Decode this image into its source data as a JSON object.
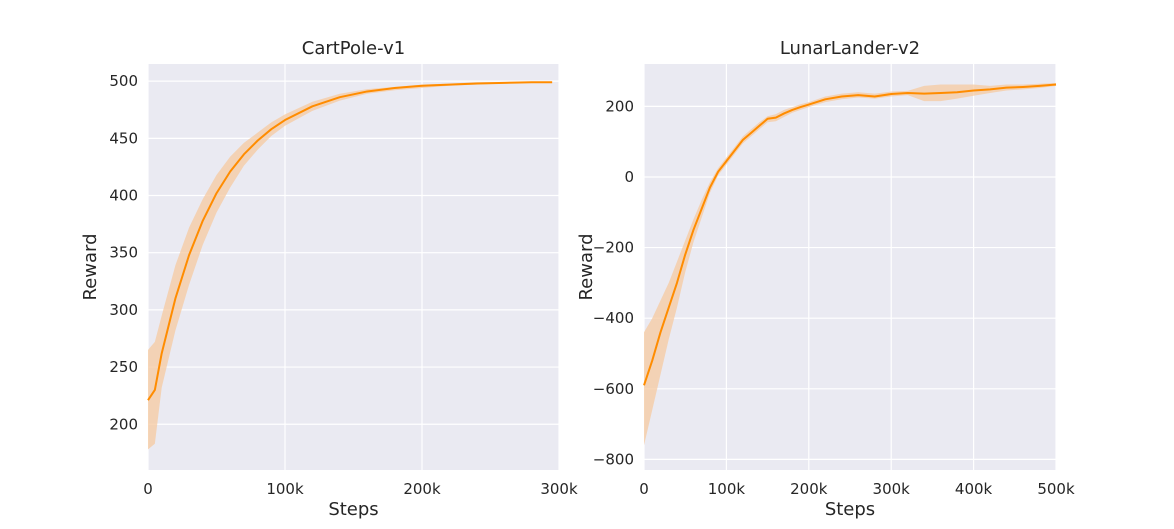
{
  "figure": {
    "colors": {
      "background": "#ffffff",
      "plot_background": "#EAEAF2",
      "grid": "#ffffff",
      "line": "#FF8C00",
      "band": "#F5C9A0"
    }
  },
  "chart_data": [
    {
      "type": "line",
      "title": "CartPole-v1",
      "xlabel": "Steps",
      "ylabel": "Reward",
      "xlim": [
        0,
        300000
      ],
      "ylim": [
        160,
        515
      ],
      "grid": true,
      "x_ticks": [
        0,
        100000,
        200000,
        300000
      ],
      "x_tick_labels": [
        "0",
        "100k",
        "200k",
        "300k"
      ],
      "y_ticks": [
        200,
        250,
        300,
        350,
        400,
        450,
        500
      ],
      "y_tick_labels": [
        "200",
        "250",
        "300",
        "350",
        "400",
        "450",
        "500"
      ],
      "series": [
        {
          "x": [
            0,
            5000,
            10000,
            20000,
            30000,
            40000,
            50000,
            60000,
            70000,
            80000,
            90000,
            100000,
            120000,
            140000,
            160000,
            180000,
            200000,
            220000,
            240000,
            260000,
            280000,
            295000
          ],
          "y": [
            221,
            230,
            262,
            310,
            348,
            378,
            402,
            421,
            436,
            448,
            458,
            466,
            478,
            486,
            491,
            494,
            496,
            497,
            498,
            498.5,
            499,
            499
          ],
          "lower": [
            178,
            183,
            232,
            282,
            322,
            357,
            385,
            407,
            426,
            440,
            452,
            461,
            474,
            483,
            489,
            492,
            494,
            496,
            497,
            498,
            498.5,
            498.5
          ],
          "upper": [
            265,
            272,
            295,
            339,
            372,
            397,
            418,
            434,
            446,
            455,
            464,
            471,
            482,
            489,
            493,
            495,
            497,
            498,
            499,
            499,
            499.5,
            499.5
          ]
        }
      ]
    },
    {
      "type": "line",
      "title": "LunarLander-v2",
      "xlabel": "Steps",
      "ylabel": "Reward",
      "xlim": [
        0,
        500000
      ],
      "ylim": [
        -830,
        320
      ],
      "grid": true,
      "x_ticks": [
        0,
        100000,
        200000,
        300000,
        400000,
        500000
      ],
      "x_tick_labels": [
        "0",
        "100k",
        "200k",
        "300k",
        "400k",
        "500k"
      ],
      "y_ticks": [
        -800,
        -600,
        -400,
        -200,
        0,
        200
      ],
      "y_tick_labels": [
        "−800",
        "−600",
        "−400",
        "−200",
        "0",
        "200"
      ],
      "series": [
        {
          "x": [
            0,
            10000,
            20000,
            30000,
            40000,
            50000,
            60000,
            70000,
            80000,
            90000,
            100000,
            110000,
            120000,
            130000,
            140000,
            150000,
            160000,
            170000,
            180000,
            190000,
            200000,
            220000,
            240000,
            260000,
            280000,
            300000,
            320000,
            340000,
            360000,
            380000,
            400000,
            420000,
            440000,
            460000,
            480000,
            500000
          ],
          "y": [
            -590,
            -520,
            -440,
            -370,
            -300,
            -220,
            -150,
            -90,
            -30,
            15,
            45,
            75,
            105,
            125,
            145,
            165,
            168,
            180,
            190,
            198,
            205,
            220,
            228,
            232,
            228,
            235,
            238,
            236,
            238,
            240,
            245,
            248,
            253,
            255,
            258,
            262
          ],
          "lower": [
            -760,
            -660,
            -560,
            -460,
            -370,
            -270,
            -185,
            -115,
            -45,
            5,
            35,
            65,
            95,
            115,
            135,
            155,
            158,
            170,
            182,
            190,
            198,
            212,
            220,
            225,
            222,
            228,
            232,
            215,
            215,
            222,
            230,
            238,
            245,
            248,
            252,
            258
          ],
          "upper": [
            -440,
            -400,
            -350,
            -300,
            -240,
            -180,
            -120,
            -65,
            -15,
            25,
            55,
            85,
            115,
            135,
            155,
            172,
            178,
            190,
            198,
            206,
            212,
            228,
            236,
            240,
            236,
            242,
            244,
            258,
            262,
            262,
            262,
            258,
            262,
            262,
            264,
            266
          ]
        }
      ]
    }
  ]
}
